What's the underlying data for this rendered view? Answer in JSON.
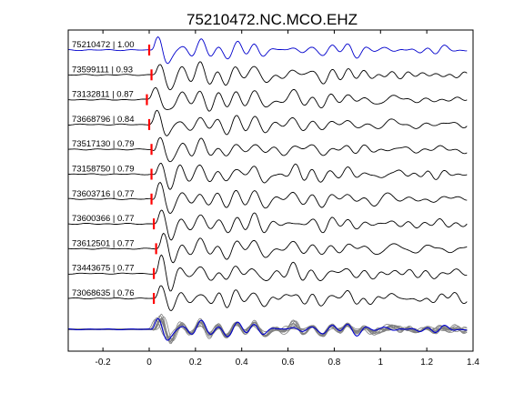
{
  "chart_data": {
    "type": "line",
    "title": "75210472.NC.MCO.EHZ",
    "xlabel": "",
    "ylabel": "",
    "xlim": [
      -0.35,
      1.4
    ],
    "x_ticks": [
      "-0.2",
      "0",
      "0.2",
      "0.4",
      "0.6",
      "0.8",
      "1",
      "1.2",
      "1.4"
    ],
    "x_tick_values": [
      -0.2,
      0,
      0.2,
      0.4,
      0.6,
      0.8,
      1.0,
      1.2,
      1.4
    ],
    "grid": false,
    "traces": [
      {
        "label": "75210472 | 1.00",
        "event_id": "75210472",
        "cc": 1.0,
        "pick_time": 0.0,
        "color": "#0000cc"
      },
      {
        "label": "73599111 | 0.93",
        "event_id": "73599111",
        "cc": 0.93,
        "pick_time": 0.01,
        "color": "#000000"
      },
      {
        "label": "73132811 | 0.87",
        "event_id": "73132811",
        "cc": 0.87,
        "pick_time": -0.01,
        "color": "#000000"
      },
      {
        "label": "73668796 | 0.84",
        "event_id": "73668796",
        "cc": 0.84,
        "pick_time": 0.0,
        "color": "#000000"
      },
      {
        "label": "73517130 | 0.79",
        "event_id": "73517130",
        "cc": 0.79,
        "pick_time": 0.01,
        "color": "#000000"
      },
      {
        "label": "73158750 | 0.79",
        "event_id": "73158750",
        "cc": 0.79,
        "pick_time": 0.01,
        "color": "#000000"
      },
      {
        "label": "73603716 | 0.77",
        "event_id": "73603716",
        "cc": 0.77,
        "pick_time": 0.01,
        "color": "#000000"
      },
      {
        "label": "73600366 | 0.77",
        "event_id": "73600366",
        "cc": 0.77,
        "pick_time": 0.02,
        "color": "#000000"
      },
      {
        "label": "73612501 | 0.77",
        "event_id": "73612501",
        "cc": 0.77,
        "pick_time": 0.03,
        "color": "#000000"
      },
      {
        "label": "73443675 | 0.77",
        "event_id": "73443675",
        "cc": 0.77,
        "pick_time": 0.02,
        "color": "#000000"
      },
      {
        "label": "73068635 | 0.76",
        "event_id": "73068635",
        "cc": 0.76,
        "pick_time": 0.02,
        "color": "#000000"
      }
    ],
    "stack": {
      "overlay_color": "#808080",
      "reference_color": "#0000cc"
    },
    "pick_marker_color": "#ff0000"
  }
}
